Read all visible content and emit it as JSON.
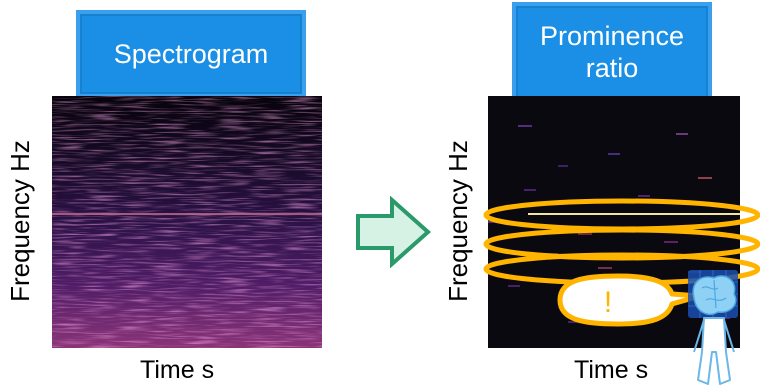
{
  "left_panel": {
    "title": "Spectrogram",
    "xlabel": "Time s",
    "ylabel": "Frequency  Hz"
  },
  "right_panel": {
    "title_line1": "Prominence",
    "title_line2": "ratio",
    "xlabel": "Time s",
    "ylabel": "Frequency  Hz",
    "callout_text": "!"
  },
  "arrow_icon": "right-arrow-icon",
  "listener_icon": "person-with-brain-icon",
  "colors": {
    "title_box": "#1b8fe6",
    "arrow_fill": "#d5f2e4",
    "arrow_stroke": "#2a9a6a",
    "ellipse": "#ffb400",
    "spectrogram_bg": "#1a0a24",
    "callout_text": "#ffb400"
  }
}
